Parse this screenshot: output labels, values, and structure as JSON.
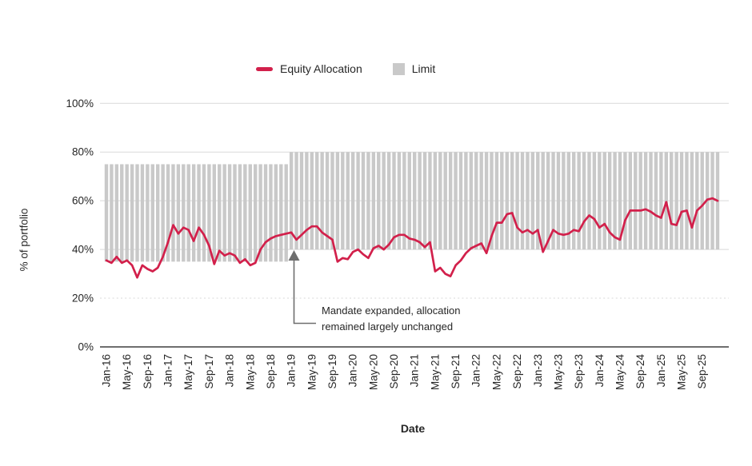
{
  "legend": {
    "items": [
      {
        "label": "Equity Allocation",
        "swatch": "line-dash",
        "color": "#D2204B"
      },
      {
        "label": "Limit",
        "swatch": "box",
        "color": "#C9C9C9"
      }
    ]
  },
  "axes": {
    "y_title": "% of portfolio",
    "x_title": "Date"
  },
  "annotation": {
    "line1": "Mandate expanded, allocation",
    "line2": "remained largely unchanged",
    "arrow_color": "#6E6E6E"
  },
  "colors": {
    "line": "#D2204B",
    "bar": "#C9C9C9",
    "grid": "#D9D9D9",
    "axis": "#3F3F3F",
    "text": "#262626"
  },
  "chart_data": {
    "type": "combo",
    "subtype": "line-over-range-bars",
    "title": "",
    "xlabel": "Date",
    "ylabel": "% of portfolio",
    "ylim": [
      0,
      100
    ],
    "grid": "horizontal",
    "legend_position": "top-center",
    "y_ticks": [
      {
        "value": 0,
        "label": "0%"
      },
      {
        "value": 20,
        "label": "20%",
        "style": "dotted"
      },
      {
        "value": 40,
        "label": "40%"
      },
      {
        "value": 60,
        "label": "60%"
      },
      {
        "value": 80,
        "label": "80%"
      },
      {
        "value": 100,
        "label": "100%"
      }
    ],
    "x_tick_labels": [
      "Jan-16",
      "May-16",
      "Sep-16",
      "Jan-17",
      "May-17",
      "Sep-17",
      "Jan-18",
      "May-18",
      "Sep-18",
      "Jan-19",
      "May-19",
      "Sep-19",
      "Jan-20",
      "May-20",
      "Sep-20",
      "Jan-21",
      "May-21",
      "Sep-21",
      "Jan-22",
      "May-22",
      "Sep-22",
      "Jan-23",
      "May-23",
      "Sep-23",
      "Jan-24",
      "May-24",
      "Sep-24",
      "Jan-25",
      "May-25",
      "Sep-25"
    ],
    "x_tick_every": 4,
    "x_months": [
      "Jan-16",
      "Feb-16",
      "Mar-16",
      "Apr-16",
      "May-16",
      "Jun-16",
      "Jul-16",
      "Aug-16",
      "Sep-16",
      "Oct-16",
      "Nov-16",
      "Dec-16",
      "Jan-17",
      "Feb-17",
      "Mar-17",
      "Apr-17",
      "May-17",
      "Jun-17",
      "Jul-17",
      "Aug-17",
      "Sep-17",
      "Oct-17",
      "Nov-17",
      "Dec-17",
      "Jan-18",
      "Feb-18",
      "Mar-18",
      "Apr-18",
      "May-18",
      "Jun-18",
      "Jul-18",
      "Aug-18",
      "Sep-18",
      "Oct-18",
      "Nov-18",
      "Dec-18",
      "Jan-19",
      "Feb-19",
      "Mar-19",
      "Apr-19",
      "May-19",
      "Jun-19",
      "Jul-19",
      "Aug-19",
      "Sep-19",
      "Oct-19",
      "Nov-19",
      "Dec-19",
      "Jan-20",
      "Feb-20",
      "Mar-20",
      "Apr-20",
      "May-20",
      "Jun-20",
      "Jul-20",
      "Aug-20",
      "Sep-20",
      "Oct-20",
      "Nov-20",
      "Dec-20",
      "Jan-21",
      "Feb-21",
      "Mar-21",
      "Apr-21",
      "May-21",
      "Jun-21",
      "Jul-21",
      "Aug-21",
      "Sep-21",
      "Oct-21",
      "Nov-21",
      "Dec-21",
      "Jan-22",
      "Feb-22",
      "Mar-22",
      "Apr-22",
      "May-22",
      "Jun-22",
      "Jul-22",
      "Aug-22",
      "Sep-22",
      "Oct-22",
      "Nov-22",
      "Dec-22",
      "Jan-23",
      "Feb-23",
      "Mar-23",
      "Apr-23",
      "May-23",
      "Jun-23",
      "Jul-23",
      "Aug-23",
      "Sep-23",
      "Oct-23",
      "Nov-23",
      "Dec-23",
      "Jan-24",
      "Feb-24",
      "Mar-24",
      "Apr-24",
      "May-24",
      "Jun-24",
      "Jul-24",
      "Aug-24",
      "Sep-24",
      "Oct-24",
      "Nov-24",
      "Dec-24",
      "Jan-25",
      "Feb-25",
      "Mar-25",
      "Apr-25",
      "May-25",
      "Jun-25",
      "Jul-25",
      "Aug-25",
      "Sep-25",
      "Oct-25",
      "Nov-25",
      "Dec-25"
    ],
    "series": [
      {
        "name": "Equity Allocation",
        "type": "line",
        "color": "#D2204B",
        "values": [
          35.5,
          34.5,
          37,
          34.5,
          35.5,
          33.5,
          28.5,
          33.5,
          32,
          31,
          32.5,
          37,
          43,
          50,
          46.5,
          49,
          48,
          43.5,
          49,
          46,
          41.5,
          34,
          39.5,
          37.5,
          38.5,
          37.5,
          34.5,
          36,
          33.5,
          34.5,
          40,
          43,
          44.5,
          45.5,
          46,
          46.5,
          47,
          44,
          46,
          48,
          49.5,
          49.5,
          47,
          45.5,
          44,
          35,
          36.5,
          36,
          39,
          40,
          38,
          36.5,
          40.5,
          41.5,
          40,
          42,
          45,
          46,
          46,
          44.5,
          44,
          43,
          41,
          43,
          31,
          32.5,
          30,
          29,
          33.5,
          35.5,
          38.5,
          40.5,
          41.5,
          42.5,
          38.5,
          45.5,
          51,
          51,
          54.5,
          55,
          49,
          47,
          48,
          46.5,
          48,
          39,
          43.5,
          48,
          46.5,
          46,
          46.5,
          48,
          47.5,
          51.5,
          54,
          52.5,
          49,
          50.5,
          47,
          45,
          44,
          52,
          56,
          56,
          56,
          56.5,
          55.5,
          54,
          53,
          59.5,
          50.5,
          50,
          55.5,
          56,
          49,
          56,
          58,
          60.5,
          61,
          60
        ]
      },
      {
        "name": "Limit",
        "type": "bar-range",
        "color": "#C9C9C9",
        "segments": [
          {
            "start_index": 0,
            "end_index": 35,
            "start_month": "Jan-16",
            "end_month": "Dec-18",
            "lower": 35,
            "upper": 75
          },
          {
            "start_index": 36,
            "end_index": 119,
            "start_month": "Jan-19",
            "end_month": "Dec-25",
            "lower": 40,
            "upper": 80
          }
        ]
      }
    ],
    "annotation_target_month": "Jan-19"
  }
}
